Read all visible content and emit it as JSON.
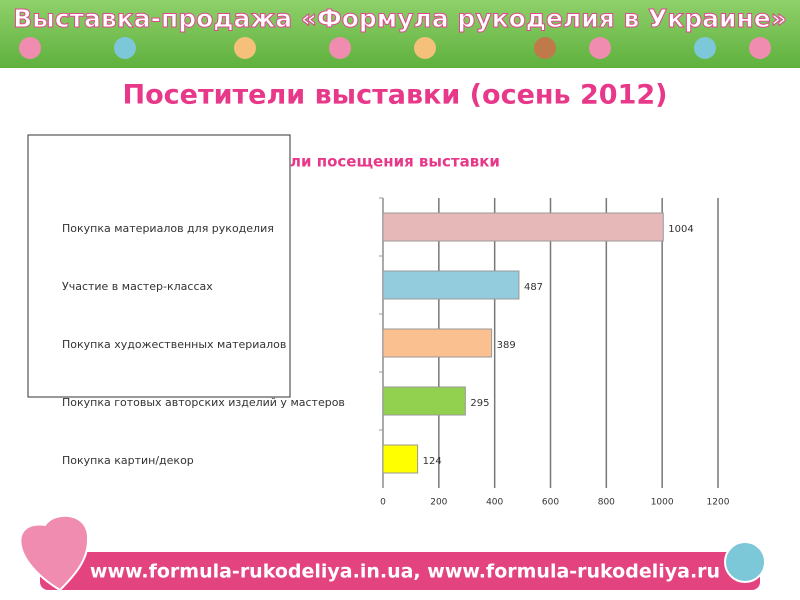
{
  "header": {
    "title": "Выставка-продажа «Формула рукоделия в Украине»"
  },
  "slide_title": "Посетители выставки (осень 2012)",
  "chart_data": {
    "type": "bar",
    "orientation": "horizontal",
    "title": "ли посещения выставки",
    "categories": [
      "Покупка материалов для рукоделия",
      "Участие в мастер-классах",
      "Покупка художественных материалов",
      "Покупка готовых авторских изделий у мастеров",
      "Покупка картин/декор"
    ],
    "values": [
      1004,
      487,
      389,
      295,
      124
    ],
    "colors": [
      "#e6b9b8",
      "#93cddd",
      "#fac090",
      "#92d050",
      "#ffff00"
    ],
    "xlim": [
      0,
      1200
    ],
    "xticks": [
      0,
      200,
      400,
      600,
      800,
      1000,
      1200
    ],
    "grid": true
  },
  "footer": {
    "text": "www.formula-rukodeliya.in.ua, www.formula-rukodeliya.ru"
  }
}
